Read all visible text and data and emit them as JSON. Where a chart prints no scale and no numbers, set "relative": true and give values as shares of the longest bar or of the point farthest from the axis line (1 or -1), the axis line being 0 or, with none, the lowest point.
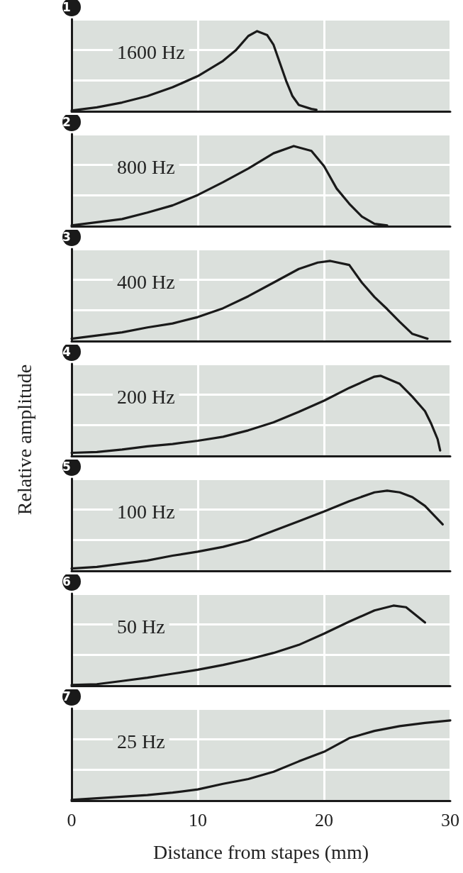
{
  "chart_data": [
    {
      "type": "line",
      "relative": true,
      "annotations": [
        "1"
      ],
      "xlim": [
        0,
        30
      ],
      "xticks": [
        0,
        10,
        20,
        30
      ],
      "grid": true,
      "tick_labels": false,
      "series": [
        {
          "name": "1600 Hz",
          "color": "#1a1a1a",
          "x": [
            0,
            2,
            4,
            6,
            8,
            10,
            12,
            13,
            14,
            14.7,
            15.5,
            16,
            17,
            17.5,
            18,
            19,
            19.4
          ],
          "values": [
            0.01,
            0.05,
            0.11,
            0.19,
            0.3,
            0.44,
            0.63,
            0.76,
            0.94,
            1.0,
            0.95,
            0.83,
            0.38,
            0.19,
            0.08,
            0.03,
            0.02
          ]
        }
      ]
    },
    {
      "type": "line",
      "relative": true,
      "annotations": [
        "2"
      ],
      "xlim": [
        0,
        30
      ],
      "xticks": [
        0,
        10,
        20,
        30
      ],
      "grid": true,
      "tick_labels": false,
      "series": [
        {
          "name": "800 Hz",
          "color": "#1a1a1a",
          "x": [
            0,
            2,
            4,
            6,
            8,
            10,
            12,
            14,
            16,
            17.6,
            19,
            20,
            21,
            22,
            23,
            24,
            25
          ],
          "values": [
            0.01,
            0.05,
            0.09,
            0.17,
            0.26,
            0.39,
            0.55,
            0.72,
            0.91,
            1.0,
            0.94,
            0.75,
            0.47,
            0.28,
            0.12,
            0.03,
            0.01
          ]
        }
      ]
    },
    {
      "type": "line",
      "relative": true,
      "annotations": [
        "3"
      ],
      "xlim": [
        0,
        30
      ],
      "xticks": [
        0,
        10,
        20,
        30
      ],
      "grid": true,
      "tick_labels": false,
      "series": [
        {
          "name": "400 Hz",
          "color": "#1a1a1a",
          "x": [
            0,
            2,
            4,
            6,
            8,
            10,
            12,
            14,
            16,
            18,
            19.5,
            20.5,
            22,
            23,
            24,
            25,
            26,
            27,
            28,
            28.2
          ],
          "values": [
            0.03,
            0.07,
            0.11,
            0.17,
            0.22,
            0.3,
            0.41,
            0.56,
            0.73,
            0.9,
            0.98,
            1.0,
            0.95,
            0.73,
            0.55,
            0.4,
            0.24,
            0.09,
            0.04,
            0.03
          ]
        }
      ]
    },
    {
      "type": "line",
      "relative": true,
      "annotations": [
        "4"
      ],
      "xlim": [
        0,
        30
      ],
      "xticks": [
        0,
        10,
        20,
        30
      ],
      "grid": true,
      "tick_labels": false,
      "ylabel": "Relative amplitude",
      "series": [
        {
          "name": "200 Hz",
          "color": "#1a1a1a",
          "x": [
            0,
            2,
            4,
            6,
            8,
            10,
            12,
            14,
            16,
            18,
            20,
            22,
            24,
            24.5,
            26,
            27,
            28,
            28.5,
            29,
            29.2
          ],
          "values": [
            0.04,
            0.05,
            0.08,
            0.12,
            0.15,
            0.19,
            0.24,
            0.32,
            0.42,
            0.55,
            0.69,
            0.85,
            0.99,
            1.0,
            0.9,
            0.74,
            0.56,
            0.4,
            0.21,
            0.07
          ]
        }
      ]
    },
    {
      "type": "line",
      "relative": true,
      "annotations": [
        "5"
      ],
      "xlim": [
        0,
        30
      ],
      "xticks": [
        0,
        10,
        20,
        30
      ],
      "grid": true,
      "tick_labels": false,
      "series": [
        {
          "name": "100 Hz",
          "color": "#1a1a1a",
          "x": [
            0,
            2,
            4,
            6,
            8,
            10,
            12,
            14,
            16,
            18,
            20,
            22,
            24,
            25,
            26,
            27,
            28,
            29.4
          ],
          "values": [
            0.03,
            0.05,
            0.09,
            0.13,
            0.19,
            0.24,
            0.3,
            0.38,
            0.5,
            0.62,
            0.74,
            0.87,
            0.98,
            1.0,
            0.98,
            0.92,
            0.81,
            0.58
          ]
        }
      ]
    },
    {
      "type": "line",
      "relative": true,
      "annotations": [
        "6"
      ],
      "xlim": [
        0,
        30
      ],
      "xticks": [
        0,
        10,
        20,
        30
      ],
      "grid": true,
      "tick_labels": false,
      "series": [
        {
          "name": "50 Hz",
          "color": "#1a1a1a",
          "x": [
            0,
            2,
            4,
            6,
            8,
            10,
            12,
            14,
            16,
            18,
            20,
            22,
            24,
            25.5,
            26.5,
            28
          ],
          "values": [
            0.01,
            0.02,
            0.06,
            0.1,
            0.15,
            0.2,
            0.26,
            0.33,
            0.41,
            0.51,
            0.65,
            0.8,
            0.94,
            1.0,
            0.98,
            0.79
          ]
        }
      ]
    },
    {
      "type": "line",
      "relative": true,
      "annotations": [
        "7"
      ],
      "xlim": [
        0,
        30
      ],
      "xticks": [
        0,
        10,
        20,
        30
      ],
      "grid": true,
      "tick_labels": "x",
      "xlabel": "Distance from stapes (mm)",
      "series": [
        {
          "name": "25 Hz",
          "color": "#1a1a1a",
          "x": [
            0,
            2,
            4,
            6,
            8,
            10,
            12,
            14,
            16,
            18,
            20,
            22,
            24,
            26,
            28,
            30
          ],
          "values": [
            0.01,
            0.03,
            0.05,
            0.07,
            0.1,
            0.14,
            0.21,
            0.27,
            0.36,
            0.49,
            0.61,
            0.78,
            0.87,
            0.93,
            0.97,
            1.0
          ]
        }
      ]
    }
  ]
}
